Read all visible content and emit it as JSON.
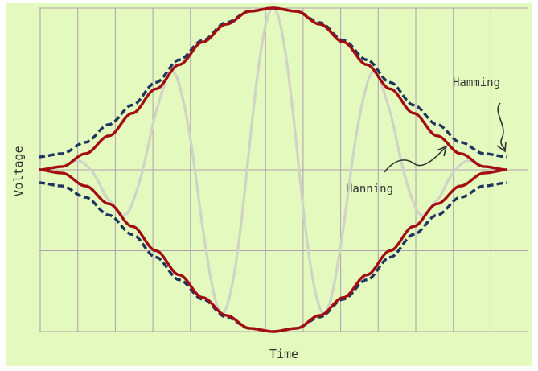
{
  "colors": {
    "panel_background": "#e3f9bd",
    "grid": "#b09fae",
    "hanning": "#a30d12",
    "hamming": "#1e3461",
    "signal": "#cfd4c6",
    "text": "#333333"
  },
  "chart_data": {
    "type": "line",
    "title": "",
    "xlabel": "Time",
    "ylabel": "Voltage",
    "xlim": [
      0,
      1
    ],
    "ylim": [
      -1,
      1
    ],
    "grid": true,
    "grid_columns": 12,
    "grid_rows": 4,
    "tick_labels": false,
    "series": [
      {
        "name": "Hanning",
        "style": "solid",
        "envelope": "symmetric",
        "x": [
          0,
          0.05,
          0.1,
          0.15,
          0.2,
          0.25,
          0.3,
          0.35,
          0.4,
          0.45,
          0.5,
          0.55,
          0.6,
          0.65,
          0.7,
          0.75,
          0.8,
          0.85,
          0.9,
          0.95,
          1.0
        ],
        "values": [
          0,
          0.02,
          0.1,
          0.21,
          0.35,
          0.5,
          0.65,
          0.79,
          0.9,
          0.98,
          1.0,
          0.98,
          0.9,
          0.79,
          0.65,
          0.5,
          0.35,
          0.21,
          0.1,
          0.02,
          0
        ]
      },
      {
        "name": "Hamming",
        "style": "dashed",
        "envelope": "symmetric",
        "x": [
          0,
          0.05,
          0.1,
          0.15,
          0.2,
          0.25,
          0.3,
          0.35,
          0.4,
          0.45,
          0.5,
          0.55,
          0.6,
          0.65,
          0.7,
          0.75,
          0.8,
          0.85,
          0.9,
          0.95,
          1.0
        ],
        "values": [
          0.08,
          0.1,
          0.17,
          0.28,
          0.4,
          0.54,
          0.68,
          0.8,
          0.91,
          0.98,
          1.0,
          0.98,
          0.91,
          0.8,
          0.68,
          0.54,
          0.4,
          0.28,
          0.17,
          0.1,
          0.08
        ]
      },
      {
        "name": "",
        "style": "faint",
        "description_free": true,
        "envelope_of": "Hanning",
        "cycles": 4.5
      }
    ],
    "annotations": [
      {
        "text": "Hamming",
        "target_series": "Hamming"
      },
      {
        "text": "Hanning",
        "target_series": "Hanning"
      }
    ]
  }
}
